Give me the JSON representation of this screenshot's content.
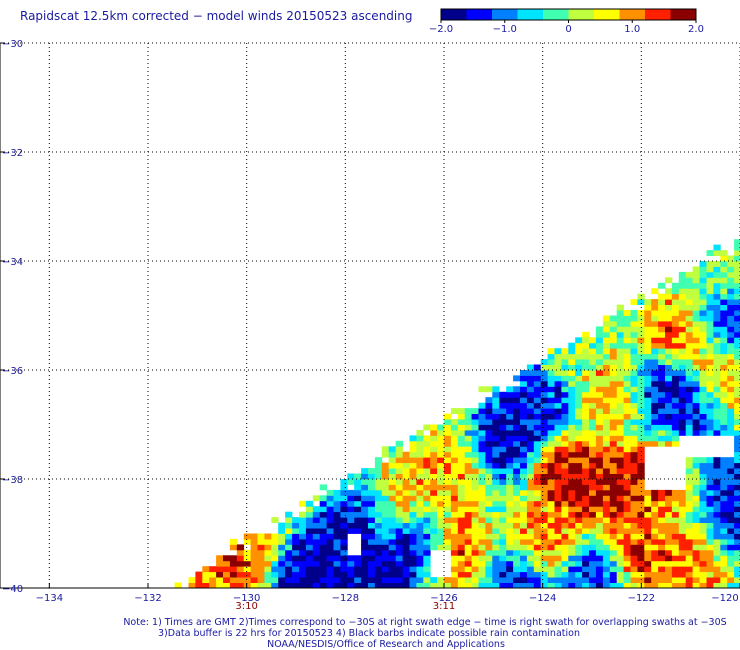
{
  "title": "Rapidscat 12.5km corrected − model winds 20150523 ascending",
  "colorbar": {
    "ticks": [
      {
        "value": -2.0,
        "label": "−2.0"
      },
      {
        "value": -1.0,
        "label": "−1.0"
      },
      {
        "value": 0,
        "label": "0"
      },
      {
        "value": 1.0,
        "label": "1.0"
      },
      {
        "value": 2.0,
        "label": "2.0"
      }
    ],
    "colors": [
      "#00008b",
      "#0000ff",
      "#0080ff",
      "#00e5ff",
      "#40ffb0",
      "#c0ff40",
      "#ffff00",
      "#ff9000",
      "#ff2000",
      "#8b0000"
    ]
  },
  "notes": {
    "line1": "Note: 1) Times are GMT 2)Times correspond to −30S at right swath edge − time is right swath for overlapping swaths at −30S",
    "line2": "3)Data buffer is 22 hrs for 20150523 4) Black barbs indicate possible rain contamination",
    "line3": "NOAA/NESDIS/Office of Research and Applications"
  },
  "chart_data": {
    "type": "heatmap",
    "title": "Rapidscat 12.5km corrected − model winds 20150523 ascending",
    "x_ticks": [
      {
        "value": -134,
        "label": "−134"
      },
      {
        "value": -132,
        "label": "−132"
      },
      {
        "value": -130,
        "label": "−130"
      },
      {
        "value": -128,
        "label": "−128"
      },
      {
        "value": -126,
        "label": "−126"
      },
      {
        "value": -124,
        "label": "−124"
      },
      {
        "value": -122,
        "label": "−122"
      },
      {
        "value": -120,
        "label": "−120"
      }
    ],
    "y_ticks": [
      {
        "value": -30,
        "label": "−30"
      },
      {
        "value": -32,
        "label": "−32"
      },
      {
        "value": -34,
        "label": "−34"
      },
      {
        "value": -36,
        "label": "−36"
      },
      {
        "value": -38,
        "label": "−38"
      },
      {
        "value": -40,
        "label": "−40"
      }
    ],
    "xlim": [
      -135.0,
      -120.0
    ],
    "ylim": [
      -40,
      -30
    ],
    "color_range": [
      -2.0,
      2.0
    ],
    "grid": true,
    "time_labels": [
      {
        "lon": -130,
        "label": "3:10"
      },
      {
        "lon": -126,
        "label": "3:11"
      }
    ],
    "swath_edge": [
      [
        -131.5,
        -40.0
      ],
      [
        -120.0,
        -33.6
      ]
    ],
    "gaps": [
      {
        "lon": [
          -122.0,
          -121.2
        ],
        "lat": [
          -38.2,
          -37.4
        ]
      },
      {
        "lon": [
          -121.3,
          -120.2
        ],
        "lat": [
          -37.6,
          -37.2
        ]
      },
      {
        "lon": [
          -126.4,
          -126.0
        ],
        "lat": [
          -39.8,
          -39.3
        ]
      },
      {
        "lon": [
          -128.0,
          -127.7
        ],
        "lat": [
          -39.4,
          -39.0
        ]
      }
    ],
    "hotspots": [
      {
        "lon": -123.0,
        "lat": -38.2,
        "value": 1.8
      },
      {
        "lon": -122.2,
        "lat": -38.1,
        "value": 1.6
      },
      {
        "lon": -121.3,
        "lat": -38.0,
        "value": 1.4
      },
      {
        "lon": -123.6,
        "lat": -37.9,
        "value": 1.9
      },
      {
        "lon": -121.4,
        "lat": -35.5,
        "value": 1.3
      },
      {
        "lon": -120.5,
        "lat": -36.0,
        "value": 1.2
      },
      {
        "lon": -125.9,
        "lat": -39.3,
        "value": 1.5
      },
      {
        "lon": -124.0,
        "lat": -39.2,
        "value": 1.2
      },
      {
        "lon": -122.0,
        "lat": -39.4,
        "value": 1.5
      },
      {
        "lon": -121.0,
        "lat": -39.5,
        "value": 1.3
      },
      {
        "lon": -127.0,
        "lat": -38.4,
        "value": 1.1
      },
      {
        "lon": -126.0,
        "lat": -37.9,
        "value": 1.0
      },
      {
        "lon": -130.3,
        "lat": -39.5,
        "value": 1.4
      },
      {
        "lon": -130.7,
        "lat": -39.8,
        "value": 1.2
      },
      {
        "lon": -122.5,
        "lat": -36.4,
        "value": 1.0
      }
    ],
    "coldspots": [
      {
        "lon": -128.5,
        "lat": -39.6,
        "value": -2.0
      },
      {
        "lon": -127.3,
        "lat": -39.7,
        "value": -2.0
      },
      {
        "lon": -128.0,
        "lat": -39.1,
        "value": -1.9
      },
      {
        "lon": -126.6,
        "lat": -39.2,
        "value": -1.8
      },
      {
        "lon": -124.8,
        "lat": -37.3,
        "value": -1.9
      },
      {
        "lon": -124.2,
        "lat": -36.8,
        "value": -1.8
      },
      {
        "lon": -121.8,
        "lat": -36.3,
        "value": -1.9
      },
      {
        "lon": -121.2,
        "lat": -36.6,
        "value": -1.8
      },
      {
        "lon": -120.6,
        "lat": -37.9,
        "value": -1.8
      },
      {
        "lon": -120.3,
        "lat": -38.8,
        "value": -1.6
      },
      {
        "lon": -124.5,
        "lat": -40.0,
        "value": -1.7
      },
      {
        "lon": -123.1,
        "lat": -39.9,
        "value": -1.6
      },
      {
        "lon": -128.8,
        "lat": -40.0,
        "value": -1.9
      },
      {
        "lon": -127.6,
        "lat": -38.6,
        "value": -1.5
      },
      {
        "lon": -120.3,
        "lat": -35.4,
        "value": -1.4
      }
    ]
  }
}
